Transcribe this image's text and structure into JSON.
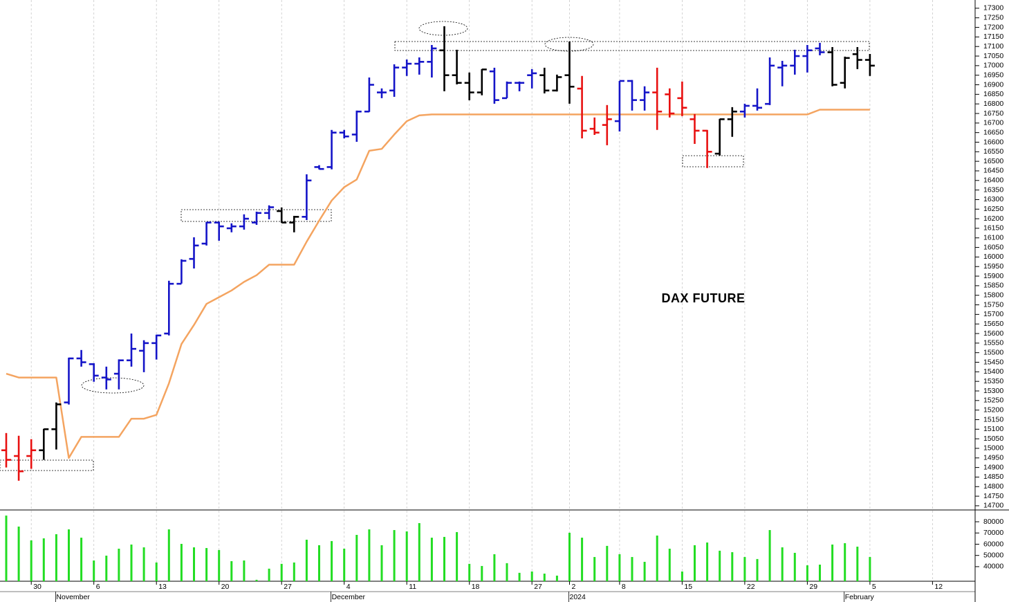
{
  "chart_data": [
    {
      "type": "ohlc",
      "title": "DAX FUTURE",
      "open": [
        14990,
        14960,
        14960,
        14990,
        15100,
        15240,
        15470,
        15440,
        15370,
        15390,
        15460,
        15510,
        15550,
        15600,
        15860,
        15990,
        16070,
        16180,
        16150,
        16160,
        16180,
        16230,
        16240,
        16180,
        16210,
        16470,
        16470,
        16650,
        16640,
        16760,
        16860,
        16870,
        16990,
        17010,
        17020,
        17080,
        16950,
        16910,
        16860,
        16970,
        16830,
        16910,
        16950,
        16950,
        16870,
        16950,
        16880,
        16670,
        16690,
        16710,
        16920,
        16820,
        16860,
        16850,
        16830,
        16720,
        16660,
        16540,
        16720,
        16760,
        16790,
        16800,
        16990,
        17000,
        17050,
        17090,
        17070,
        16910,
        17060,
        17030,
        null,
        null,
        null,
        null,
        null,
        null,
        null,
        null
      ],
      "high": [
        15080,
        15066,
        15048,
        15102,
        15240,
        15474,
        15514,
        15445,
        15427,
        15465,
        15600,
        15565,
        15594,
        15876,
        15988,
        16103,
        16183,
        16185,
        16176,
        16223,
        16237,
        16270,
        16259,
        16215,
        16432,
        16480,
        16664,
        16664,
        16765,
        16938,
        16881,
        17007,
        17032,
        17043,
        17108,
        17206,
        17083,
        16964,
        16982,
        16989,
        16917,
        16917,
        16982,
        16989,
        16953,
        17126,
        16946,
        16729,
        16794,
        16920,
        16925,
        16892,
        16989,
        16881,
        16917,
        16747,
        16664,
        16722,
        16783,
        16801,
        16881,
        17043,
        17025,
        17083,
        17108,
        17119,
        17097,
        17047,
        17097,
        17061,
        null,
        null,
        null,
        null,
        null,
        null,
        null,
        null
      ],
      "low": [
        14900,
        14831,
        14893,
        14940,
        14994,
        15229,
        15427,
        15348,
        15308,
        15308,
        15427,
        15398,
        15464,
        15590,
        15861,
        15940,
        16060,
        16085,
        16129,
        16143,
        16168,
        16197,
        16179,
        16129,
        16193,
        16458,
        16458,
        16620,
        16602,
        16758,
        16830,
        16837,
        16946,
        16953,
        16938,
        16866,
        16902,
        16819,
        16845,
        16801,
        16830,
        16866,
        16881,
        16855,
        16865,
        16801,
        16620,
        16638,
        16584,
        16656,
        16765,
        16765,
        16664,
        16729,
        16736,
        16591,
        16465,
        16530,
        16628,
        16729,
        16765,
        16794,
        16892,
        16953,
        16964,
        17054,
        16892,
        16881,
        16982,
        16946,
        null,
        null,
        null,
        null,
        null,
        null,
        null,
        null
      ],
      "close": [
        14940,
        14880,
        14990,
        15100,
        15230,
        15470,
        15450,
        15380,
        15360,
        15460,
        15520,
        15550,
        15590,
        15860,
        15980,
        16060,
        16180,
        16160,
        16160,
        16200,
        16230,
        16260,
        16180,
        16210,
        16400,
        16460,
        16650,
        16630,
        16760,
        16900,
        16860,
        16990,
        17010,
        17020,
        17090,
        16950,
        16910,
        16860,
        16980,
        16820,
        16910,
        16910,
        16960,
        16870,
        16940,
        16890,
        16660,
        16650,
        16720,
        16920,
        16820,
        16860,
        16760,
        16750,
        16780,
        16660,
        16550,
        16720,
        16760,
        16790,
        16780,
        17000,
        17000,
        17050,
        17080,
        17070,
        16900,
        17040,
        17030,
        17000,
        null,
        null,
        null,
        null,
        null,
        null,
        null,
        null
      ],
      "colors": [
        "#e81010",
        "#e81010",
        "#e81010",
        "#000000",
        "#000000",
        "#1414c8",
        "#1414c8",
        "#1414c8",
        "#1414c8",
        "#1414c8",
        "#1414c8",
        "#1414c8",
        "#1414c8",
        "#1414c8",
        "#1414c8",
        "#1414c8",
        "#1414c8",
        "#1414c8",
        "#1414c8",
        "#1414c8",
        "#1414c8",
        "#1414c8",
        "#000000",
        "#000000",
        "#1414c8",
        "#1414c8",
        "#1414c8",
        "#1414c8",
        "#1414c8",
        "#1414c8",
        "#1414c8",
        "#1414c8",
        "#1414c8",
        "#1414c8",
        "#1414c8",
        "#000000",
        "#000000",
        "#000000",
        "#000000",
        "#1414c8",
        "#1414c8",
        "#1414c8",
        "#1414c8",
        "#000000",
        "#000000",
        "#000000",
        "#e81010",
        "#e81010",
        "#e81010",
        "#1414c8",
        "#1414c8",
        "#1414c8",
        "#e81010",
        "#e81010",
        "#e81010",
        "#e81010",
        "#e81010",
        "#000000",
        "#000000",
        "#1414c8",
        "#1414c8",
        "#1414c8",
        "#1414c8",
        "#1414c8",
        "#1414c8",
        "#1414c8",
        "#000000",
        "#000000",
        "#000000",
        "#000000",
        null,
        null,
        null,
        null,
        null,
        null,
        null,
        null
      ],
      "line": {
        "color": "#f4a460",
        "values": [
          15390,
          15370,
          15370,
          15370,
          15370,
          14950,
          15060,
          15060,
          15060,
          15060,
          15155,
          15155,
          15175,
          15340,
          15545,
          15645,
          15755,
          15790,
          15825,
          15870,
          15905,
          15960,
          15960,
          15960,
          16080,
          16190,
          16295,
          16365,
          16405,
          16555,
          16565,
          16640,
          16710,
          16740,
          16745,
          16745,
          16745,
          16745,
          16745,
          16745,
          16745,
          16745,
          16745,
          16745,
          16745,
          16745,
          16745,
          16745,
          16745,
          16745,
          16745,
          16745,
          16745,
          16745,
          16745,
          16745,
          16745,
          16745,
          16745,
          16745,
          16745,
          16745,
          16745,
          16745,
          16745,
          16770,
          16770,
          16770,
          16770,
          16770,
          null,
          null,
          null,
          null,
          null,
          null,
          null,
          null
        ]
      },
      "ylim": [
        14678,
        17343
      ],
      "yticks": [
        14700,
        14750,
        14800,
        14850,
        14900,
        14950,
        15000,
        15050,
        15100,
        15150,
        15200,
        15250,
        15300,
        15350,
        15400,
        15450,
        15500,
        15550,
        15600,
        15650,
        15700,
        15750,
        15800,
        15850,
        15900,
        15950,
        16000,
        16050,
        16100,
        16150,
        16200,
        16250,
        16300,
        16350,
        16400,
        16450,
        16500,
        16550,
        16600,
        16650,
        16700,
        16750,
        16800,
        16850,
        16900,
        16950,
        17000,
        17050,
        17100,
        17150,
        17200,
        17250,
        17300
      ]
    },
    {
      "type": "bar",
      "color": "#22dd22",
      "categories": [
        null,
        null,
        "30",
        null,
        null,
        null,
        null,
        "6",
        null,
        null,
        null,
        null,
        "13",
        null,
        null,
        null,
        null,
        "20",
        null,
        null,
        null,
        null,
        "27",
        null,
        null,
        null,
        null,
        "4",
        null,
        null,
        null,
        null,
        "11",
        null,
        null,
        null,
        null,
        "18",
        null,
        null,
        null,
        null,
        "27",
        null,
        null,
        "2",
        null,
        null,
        null,
        "8",
        null,
        null,
        null,
        null,
        "15",
        null,
        null,
        null,
        null,
        "22",
        null,
        null,
        null,
        null,
        "29",
        null,
        null,
        null,
        null,
        "5",
        null,
        null,
        null,
        null,
        "12",
        null,
        null,
        null
      ],
      "period_labels": [
        {
          "label": "November",
          "index": 4
        },
        {
          "label": "December",
          "index": 26
        },
        {
          "label": "2024",
          "index": 45
        },
        {
          "label": "February",
          "index": 67
        }
      ],
      "values": [
        85500,
        75700,
        63400,
        65200,
        68900,
        73200,
        65800,
        45500,
        49800,
        56000,
        59700,
        57200,
        43700,
        73200,
        60300,
        57200,
        56600,
        54800,
        44900,
        45500,
        28300,
        38200,
        42500,
        43700,
        64000,
        59100,
        62800,
        56000,
        68300,
        73200,
        59100,
        72600,
        71400,
        78800,
        65800,
        66500,
        70800,
        42500,
        40600,
        51100,
        43100,
        34500,
        35700,
        33800,
        32000,
        70200,
        65800,
        48600,
        58500,
        51100,
        48600,
        44300,
        67700,
        56000,
        35700,
        59100,
        61500,
        54200,
        52900,
        48600,
        46800,
        72600,
        57200,
        52300,
        41200,
        41800,
        59700,
        60900,
        57800,
        48600,
        null,
        null,
        null,
        null,
        null,
        null,
        null,
        null
      ],
      "ylim": [
        27000,
        90500
      ],
      "yticks": [
        40000,
        50000,
        60000,
        70000,
        80000
      ]
    }
  ]
}
